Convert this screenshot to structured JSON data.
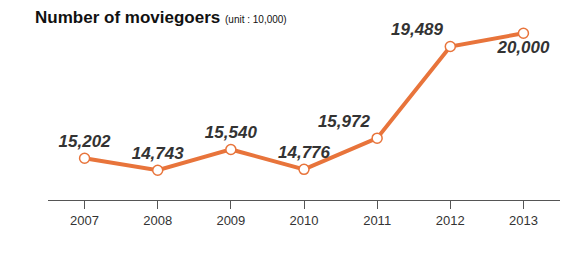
{
  "chart_data": {
    "type": "line",
    "title": "Number of moviegoers",
    "subtitle": "(unit : 10,000)",
    "categories": [
      "2007",
      "2008",
      "2009",
      "2010",
      "2011",
      "2012",
      "2013"
    ],
    "values": [
      15202,
      14743,
      15540,
      14776,
      15972,
      19489,
      20000
    ],
    "value_labels": [
      "15,202",
      "14,743",
      "15,540",
      "14,776",
      "15,972",
      "19,489",
      "20,000"
    ],
    "color": "#e8743b",
    "marker": "circle",
    "ylim": [
      13600,
      20700
    ],
    "grid": false,
    "data_labels": true,
    "tick_labels": "x"
  }
}
